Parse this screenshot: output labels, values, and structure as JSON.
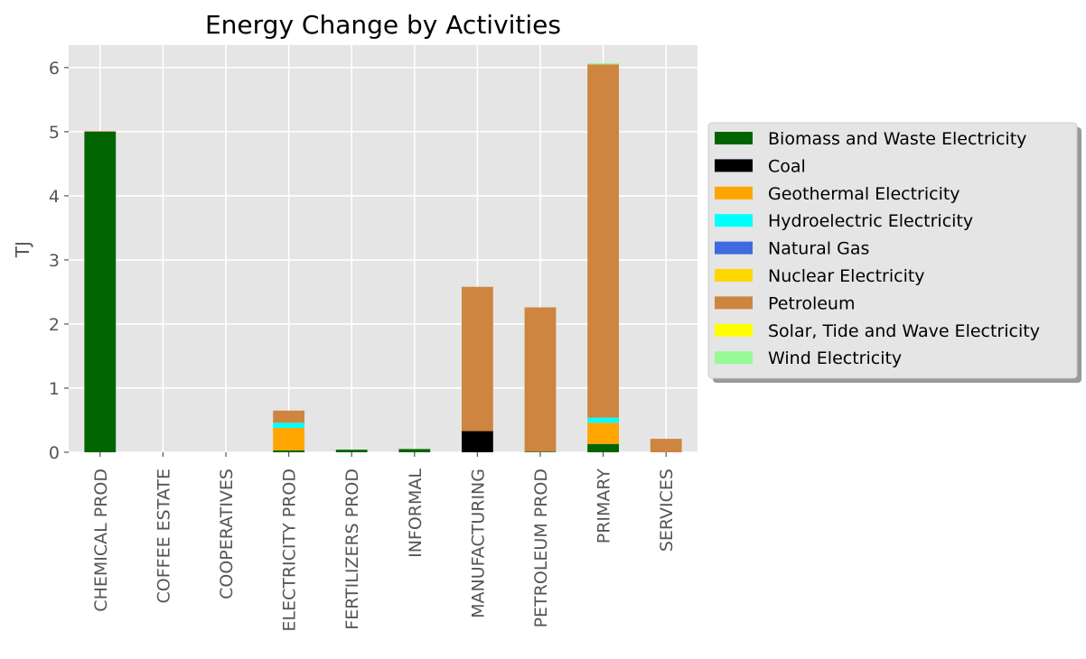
{
  "chart_data": {
    "type": "bar",
    "stacked": true,
    "title": "Energy Change by Activities",
    "xlabel": "",
    "ylabel": "TJ",
    "ylim": [
      0,
      6.35
    ],
    "yticks": [
      0,
      1,
      2,
      3,
      4,
      5,
      6
    ],
    "grid": true,
    "legend_position": "right",
    "categories": [
      "CHEMICAL PROD",
      "COFFEE ESTATE",
      "COOPERATIVES",
      "ELECTRICITY PROD",
      "FERTILIZERS PROD",
      "INFORMAL",
      "MANUFACTURING",
      "PETROLEUM PROD",
      "PRIMARY",
      "SERVICES"
    ],
    "series": [
      {
        "name": "Biomass and Waste Electricity",
        "color": "#006400",
        "values": [
          5.0,
          0,
          0,
          0.03,
          0.04,
          0.05,
          0,
          0.01,
          0.13,
          0
        ]
      },
      {
        "name": "Coal",
        "color": "#000000",
        "values": [
          0,
          0,
          0,
          0,
          0,
          0,
          0.33,
          0,
          0,
          0
        ]
      },
      {
        "name": "Geothermal Electricity",
        "color": "#FFA500",
        "values": [
          0,
          0,
          0,
          0.35,
          0,
          0,
          0,
          0,
          0.33,
          0
        ]
      },
      {
        "name": "Hydroelectric Electricity",
        "color": "#00FFFF",
        "values": [
          0,
          0,
          0,
          0.08,
          0,
          0,
          0,
          0,
          0.08,
          0
        ]
      },
      {
        "name": "Natural Gas",
        "color": "#4169E1",
        "values": [
          0,
          0,
          0,
          0,
          0,
          0,
          0,
          0,
          0,
          0
        ]
      },
      {
        "name": "Nuclear Electricity",
        "color": "#FFD700",
        "values": [
          0,
          0,
          0,
          0,
          0,
          0,
          0,
          0,
          0,
          0
        ]
      },
      {
        "name": "Petroleum",
        "color": "#CD853F",
        "values": [
          0.01,
          0,
          0,
          0.19,
          0,
          0,
          2.25,
          2.25,
          5.51,
          0.21
        ]
      },
      {
        "name": "Solar, Tide and Wave Electricity",
        "color": "#FFFF00",
        "values": [
          0,
          0,
          0,
          0,
          0,
          0,
          0,
          0,
          0,
          0
        ]
      },
      {
        "name": "Wind Electricity",
        "color": "#98FB98",
        "values": [
          0,
          0,
          0,
          0,
          0,
          0,
          0,
          0,
          0.02,
          0
        ]
      }
    ],
    "colors": {
      "plot_background": "#E5E5E5",
      "grid": "#FFFFFF",
      "legend_background": "#E5E5E5"
    }
  }
}
